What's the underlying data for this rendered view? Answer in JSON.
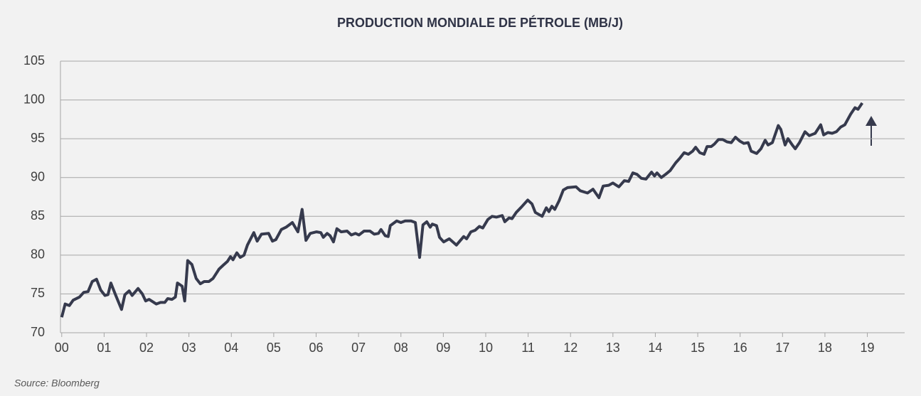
{
  "chart_data": {
    "type": "line",
    "title": "PRODUCTION MONDIALE DE PÉTROLE (MB/J)",
    "source": "Source: Bloomberg",
    "xlim": [
      -0.03,
      19.88
    ],
    "xticks": [
      {
        "value": 0,
        "label": "00"
      },
      {
        "value": 1,
        "label": "01"
      },
      {
        "value": 2,
        "label": "02"
      },
      {
        "value": 3,
        "label": "03"
      },
      {
        "value": 4,
        "label": "04"
      },
      {
        "value": 5,
        "label": "05"
      },
      {
        "value": 6,
        "label": "06"
      },
      {
        "value": 7,
        "label": "07"
      },
      {
        "value": 8,
        "label": "08"
      },
      {
        "value": 9,
        "label": "09"
      },
      10,
      11,
      12,
      13,
      14,
      15,
      16,
      17,
      18,
      19
    ],
    "ylim": [
      70,
      105
    ],
    "yticks": [
      70,
      75,
      80,
      85,
      90,
      95,
      100,
      105
    ],
    "grid": true,
    "x": [
      0,
      0.08,
      0.18,
      0.27,
      0.42,
      0.52,
      0.62,
      0.72,
      0.82,
      0.92,
      1.02,
      1.09,
      1.16,
      1.26,
      1.41,
      1.49,
      1.59,
      1.66,
      1.8,
      1.9,
      1.98,
      2.06,
      2.23,
      2.33,
      2.43,
      2.5,
      2.6,
      2.68,
      2.73,
      2.84,
      2.9,
      2.97,
      3.07,
      3.17,
      3.27,
      3.36,
      3.47,
      3.57,
      3.71,
      3.81,
      3.91,
      3.98,
      4.04,
      4.13,
      4.21,
      4.3,
      4.38,
      4.53,
      4.61,
      4.71,
      4.88,
      4.97,
      5.05,
      5.18,
      5.29,
      5.44,
      5.57,
      5.67,
      5.76,
      5.86,
      6.01,
      6.11,
      6.17,
      6.26,
      6.33,
      6.41,
      6.49,
      6.59,
      6.73,
      6.83,
      6.93,
      7.01,
      7.13,
      7.27,
      7.37,
      7.47,
      7.53,
      7.63,
      7.7,
      7.75,
      7.9,
      8.0,
      8.1,
      8.24,
      8.34,
      8.44,
      8.52,
      8.61,
      8.69,
      8.74,
      8.84,
      8.91,
      9.01,
      9.14,
      9.31,
      9.48,
      9.55,
      9.65,
      9.75,
      9.85,
      9.93,
      10.05,
      10.15,
      10.25,
      10.39,
      10.45,
      10.55,
      10.62,
      10.72,
      10.86,
      10.99,
      11.09,
      11.17,
      11.33,
      11.43,
      11.49,
      11.56,
      11.63,
      11.73,
      11.83,
      11.93,
      12.13,
      12.23,
      12.4,
      12.53,
      12.67,
      12.77,
      12.9,
      13.0,
      13.14,
      13.27,
      13.37,
      13.47,
      13.57,
      13.67,
      13.78,
      13.91,
      13.98,
      14.04,
      14.14,
      14.24,
      14.35,
      14.48,
      14.58,
      14.68,
      14.78,
      14.88,
      14.95,
      15.05,
      15.15,
      15.22,
      15.32,
      15.39,
      15.49,
      15.59,
      15.69,
      15.79,
      15.89,
      15.99,
      16.09,
      16.19,
      16.26,
      16.39,
      16.49,
      16.59,
      16.66,
      16.76,
      16.9,
      16.96,
      17.06,
      17.13,
      17.23,
      17.3,
      17.4,
      17.53,
      17.63,
      17.77,
      17.9,
      17.97,
      18.07,
      18.17,
      18.27,
      18.37,
      18.47,
      18.61,
      18.71,
      18.78,
      18.88
    ],
    "series": [
      {
        "color": "#363a4d",
        "values": [
          72,
          73.7,
          73.5,
          74.2,
          74.6,
          75.2,
          75.3,
          76.6,
          76.9,
          75.5,
          74.8,
          74.9,
          76.4,
          75,
          73,
          74.9,
          75.4,
          74.8,
          75.7,
          75,
          74.1,
          74.3,
          73.7,
          73.9,
          73.9,
          74.4,
          74.3,
          74.6,
          76.4,
          76,
          74.1,
          79.3,
          78.8,
          77,
          76.3,
          76.6,
          76.6,
          77,
          78.2,
          78.7,
          79.2,
          79.8,
          79.4,
          80.3,
          79.7,
          80,
          81.3,
          82.9,
          81.8,
          82.7,
          82.8,
          81.8,
          82,
          83.3,
          83.6,
          84.2,
          83,
          85.9,
          81.9,
          82.8,
          83,
          82.9,
          82.3,
          82.8,
          82.5,
          81.7,
          83.4,
          83,
          83.1,
          82.6,
          82.8,
          82.6,
          83.1,
          83.1,
          82.7,
          82.8,
          83.3,
          82.5,
          82.4,
          83.8,
          84.4,
          84.2,
          84.4,
          84.4,
          84.2,
          79.7,
          83.9,
          84.3,
          83.6,
          84,
          83.8,
          82.3,
          81.7,
          82.1,
          81.3,
          82.4,
          82.1,
          83,
          83.2,
          83.7,
          83.5,
          84.6,
          85,
          84.9,
          85.1,
          84.3,
          84.8,
          84.7,
          85.5,
          86.3,
          87.1,
          86.6,
          85.5,
          85,
          86.1,
          85.6,
          86.3,
          85.9,
          87,
          88.4,
          88.7,
          88.8,
          88.3,
          88,
          88.5,
          87.4,
          88.9,
          89,
          89.3,
          88.8,
          89.6,
          89.5,
          90.6,
          90.4,
          89.9,
          89.8,
          90.7,
          90.2,
          90.6,
          90,
          90.4,
          90.9,
          91.9,
          92.5,
          93.2,
          93,
          93.4,
          93.9,
          93.2,
          93,
          94,
          94,
          94.3,
          94.9,
          94.9,
          94.6,
          94.5,
          95.2,
          94.7,
          94.4,
          94.5,
          93.4,
          93.1,
          93.7,
          94.8,
          94.2,
          94.5,
          96.7,
          96.2,
          94.2,
          95,
          94.2,
          93.7,
          94.5,
          95.9,
          95.4,
          95.7,
          96.8,
          95.5,
          95.8,
          95.7,
          95.9,
          96.5,
          96.8,
          98.2,
          99,
          98.8,
          99.6
        ]
      }
    ]
  }
}
